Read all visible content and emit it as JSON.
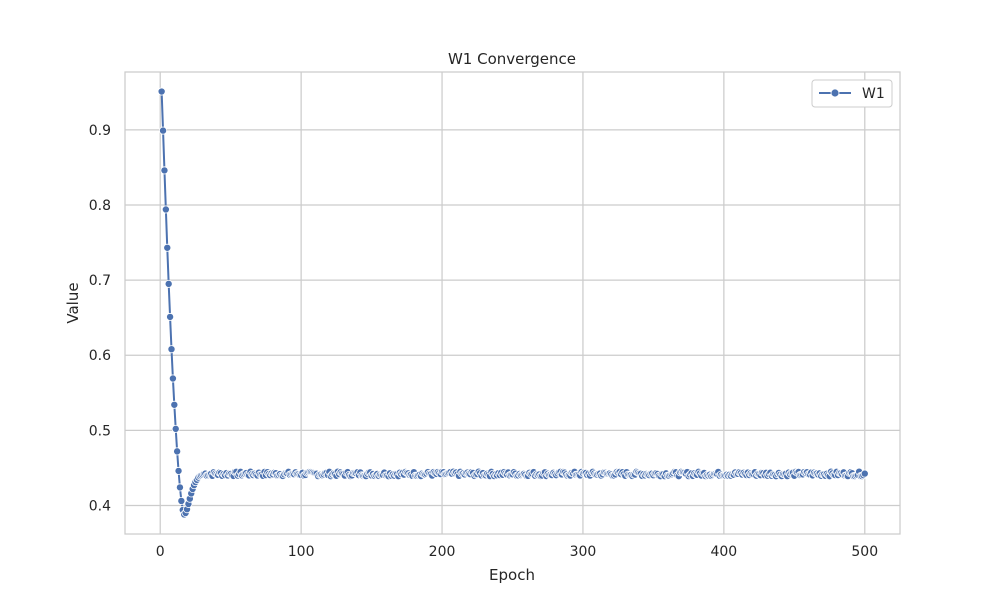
{
  "chart_data": {
    "type": "line",
    "title": "W1 Convergence",
    "xlabel": "Epoch",
    "ylabel": "Value",
    "xlim": [
      -25,
      525
    ],
    "ylim": [
      0.362,
      0.977
    ],
    "xticks": [
      0,
      100,
      200,
      300,
      400,
      500
    ],
    "yticks": [
      0.4,
      0.5,
      0.6,
      0.7,
      0.8,
      0.9
    ],
    "grid": true,
    "legend_position": "top-right",
    "colors": {
      "series": "#4c72b0",
      "grid": "#cccccc",
      "frame": "#cccccc"
    },
    "series": [
      {
        "name": "W1",
        "marker": "circle",
        "x_start": 1,
        "x_end": 500,
        "initial_points": [
          [
            1,
            0.951
          ],
          [
            2,
            0.899
          ],
          [
            3,
            0.846
          ],
          [
            4,
            0.794
          ],
          [
            5,
            0.743
          ],
          [
            6,
            0.695
          ],
          [
            7,
            0.651
          ],
          [
            8,
            0.608
          ],
          [
            9,
            0.569
          ],
          [
            10,
            0.534
          ],
          [
            11,
            0.502
          ],
          [
            12,
            0.472
          ],
          [
            13,
            0.446
          ],
          [
            14,
            0.424
          ],
          [
            15,
            0.406
          ],
          [
            16,
            0.394
          ],
          [
            17,
            0.388
          ],
          [
            18,
            0.39
          ],
          [
            19,
            0.395
          ],
          [
            20,
            0.402
          ],
          [
            21,
            0.409
          ],
          [
            22,
            0.416
          ],
          [
            23,
            0.422
          ],
          [
            24,
            0.427
          ],
          [
            25,
            0.431
          ],
          [
            26,
            0.434
          ],
          [
            27,
            0.437
          ],
          [
            28,
            0.439
          ],
          [
            29,
            0.44
          ],
          [
            30,
            0.441
          ]
        ],
        "plateau_value": 0.442,
        "plateau_jitter": 0.003
      }
    ]
  }
}
